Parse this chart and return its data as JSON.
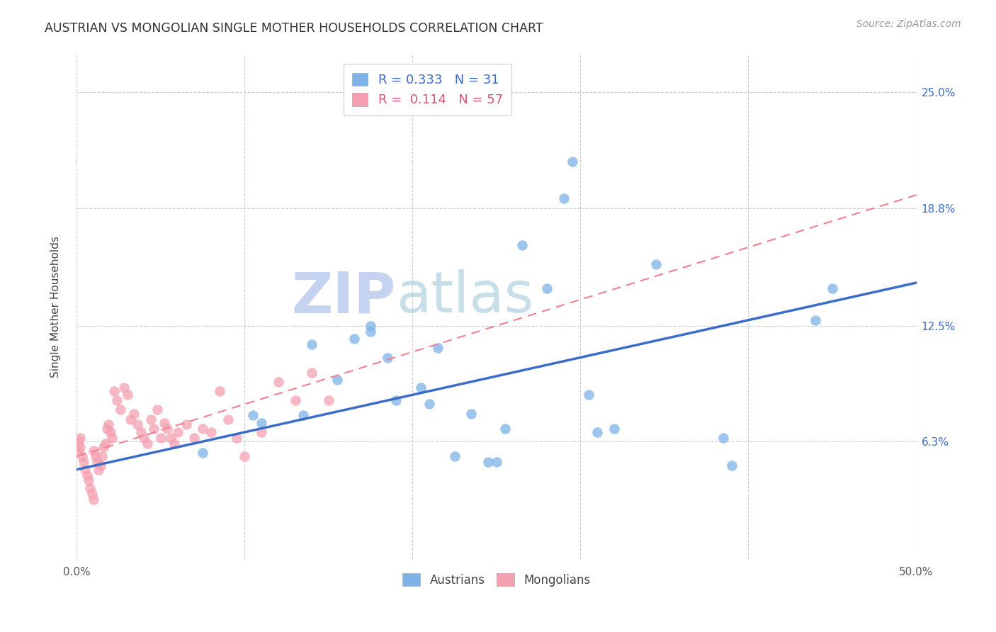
{
  "title": "AUSTRIAN VS MONGOLIAN SINGLE MOTHER HOUSEHOLDS CORRELATION CHART",
  "source": "Source: ZipAtlas.com",
  "ylabel": "Single Mother Households",
  "watermark1": "ZIP",
  "watermark2": "atlas",
  "xlim": [
    0.0,
    0.5
  ],
  "ylim": [
    0.0,
    0.27
  ],
  "yticks": [
    0.063,
    0.125,
    0.188,
    0.25
  ],
  "ytick_labels": [
    "6.3%",
    "12.5%",
    "18.8%",
    "25.0%"
  ],
  "xticks": [
    0.0,
    0.1,
    0.2,
    0.3,
    0.4,
    0.5
  ],
  "xtick_labels": [
    "0.0%",
    "",
    "",
    "",
    "",
    "50.0%"
  ],
  "legend_blue_text": "R = 0.333   N = 31",
  "legend_pink_text": "R =  0.114   N = 57",
  "austrians_color": "#7EB3E8",
  "mongolians_color": "#F4A0B0",
  "austrians_line_color": "#3B6CC8",
  "mongolians_line_color": "#F08090",
  "austrians_x": [
    0.075,
    0.105,
    0.11,
    0.135,
    0.14,
    0.155,
    0.165,
    0.175,
    0.175,
    0.185,
    0.19,
    0.205,
    0.21,
    0.215,
    0.225,
    0.235,
    0.245,
    0.25,
    0.255,
    0.265,
    0.28,
    0.29,
    0.295,
    0.305,
    0.31,
    0.32,
    0.345,
    0.385,
    0.39,
    0.44,
    0.45
  ],
  "austrians_y": [
    0.057,
    0.077,
    0.073,
    0.077,
    0.115,
    0.096,
    0.118,
    0.125,
    0.122,
    0.108,
    0.085,
    0.092,
    0.083,
    0.113,
    0.055,
    0.078,
    0.052,
    0.052,
    0.07,
    0.168,
    0.145,
    0.193,
    0.213,
    0.088,
    0.068,
    0.07,
    0.158,
    0.065,
    0.05,
    0.128,
    0.145
  ],
  "mongolians_x": [
    0.001,
    0.001,
    0.002,
    0.002,
    0.003,
    0.004,
    0.005,
    0.006,
    0.007,
    0.008,
    0.009,
    0.01,
    0.01,
    0.011,
    0.012,
    0.013,
    0.014,
    0.015,
    0.016,
    0.017,
    0.018,
    0.019,
    0.02,
    0.021,
    0.022,
    0.024,
    0.026,
    0.028,
    0.03,
    0.032,
    0.034,
    0.036,
    0.038,
    0.04,
    0.042,
    0.044,
    0.046,
    0.048,
    0.05,
    0.052,
    0.054,
    0.056,
    0.058,
    0.06,
    0.065,
    0.07,
    0.075,
    0.08,
    0.085,
    0.09,
    0.095,
    0.1,
    0.11,
    0.12,
    0.13,
    0.14,
    0.15
  ],
  "mongolians_y": [
    0.058,
    0.063,
    0.06,
    0.065,
    0.055,
    0.052,
    0.048,
    0.045,
    0.042,
    0.038,
    0.035,
    0.032,
    0.058,
    0.055,
    0.052,
    0.048,
    0.05,
    0.055,
    0.06,
    0.062,
    0.07,
    0.072,
    0.068,
    0.065,
    0.09,
    0.085,
    0.08,
    0.092,
    0.088,
    0.075,
    0.078,
    0.072,
    0.068,
    0.065,
    0.062,
    0.075,
    0.07,
    0.08,
    0.065,
    0.073,
    0.07,
    0.065,
    0.062,
    0.068,
    0.072,
    0.065,
    0.07,
    0.068,
    0.09,
    0.075,
    0.065,
    0.055,
    0.068,
    0.095,
    0.085,
    0.1,
    0.085
  ],
  "background_color": "#ffffff",
  "grid_color": "#cccccc",
  "aus_trend_start_x": 0.0,
  "aus_trend_start_y": 0.048,
  "aus_trend_end_x": 0.5,
  "aus_trend_end_y": 0.148,
  "mon_trend_start_x": 0.0,
  "mon_trend_start_y": 0.055,
  "mon_trend_end_x": 0.5,
  "mon_trend_end_y": 0.195
}
